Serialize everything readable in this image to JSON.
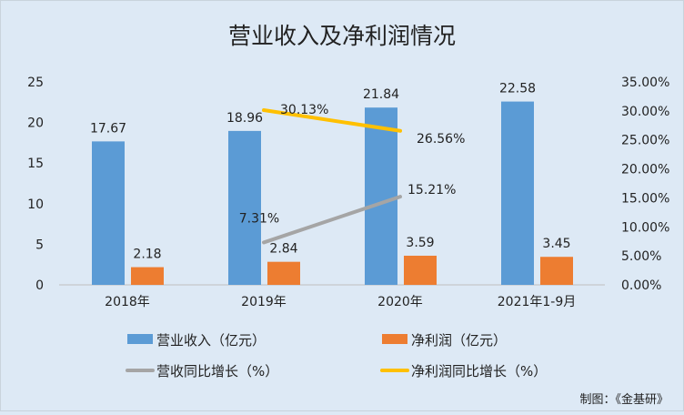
{
  "chart_data": {
    "type": "bar",
    "title": "营业收入及净利润情况",
    "categories": [
      "2018年",
      "2019年",
      "2020年",
      "2021年1-9月"
    ],
    "series": [
      {
        "name": "营业收入（亿元）",
        "type": "bar",
        "axis": "left",
        "color": "#5b9bd5",
        "values": [
          17.67,
          18.96,
          21.84,
          22.58
        ],
        "labels": [
          "17.67",
          "18.96",
          "21.84",
          "22.58"
        ]
      },
      {
        "name": "净利润（亿元）",
        "type": "bar",
        "axis": "left",
        "color": "#ed7d31",
        "values": [
          2.18,
          2.84,
          3.59,
          3.45
        ],
        "labels": [
          "2.18",
          "2.84",
          "3.59",
          "3.45"
        ]
      },
      {
        "name": "营收同比增长（%）",
        "type": "line",
        "axis": "right",
        "color": "#a5a5a5",
        "values": [
          null,
          7.31,
          15.21,
          null
        ],
        "labels": [
          "",
          "7.31%",
          "15.21%",
          ""
        ]
      },
      {
        "name": "净利润同比增长（%）",
        "type": "line",
        "axis": "right",
        "color": "#ffc000",
        "values": [
          null,
          30.13,
          26.56,
          null
        ],
        "labels": [
          "",
          "30.13%",
          "26.56%",
          ""
        ]
      }
    ],
    "y_left": {
      "ylim": [
        0,
        25
      ],
      "ticks": [
        "0",
        "5",
        "10",
        "15",
        "20",
        "25"
      ]
    },
    "y_right": {
      "ylim": [
        0,
        35
      ],
      "ticks": [
        "0.00%",
        "5.00%",
        "10.00%",
        "15.00%",
        "20.00%",
        "25.00%",
        "30.00%",
        "35.00%"
      ]
    },
    "grid": false,
    "legend": "bottom"
  },
  "footer": {
    "source": "制图：《金基研》"
  }
}
